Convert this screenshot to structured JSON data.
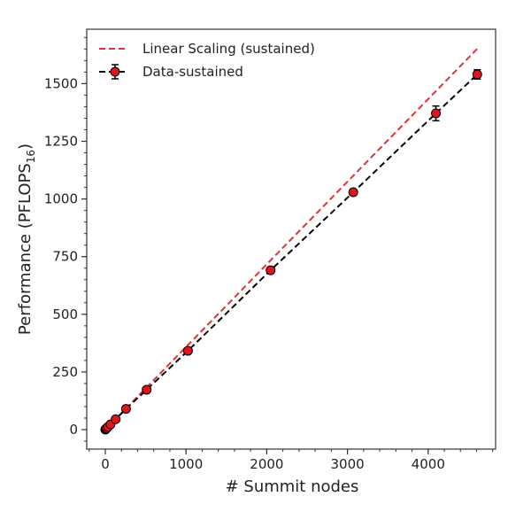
{
  "chart_data": {
    "type": "line",
    "title": "",
    "xlabel": "# Summit nodes",
    "ylabel": "Performance (PFLOPS",
    "ylabel_subscript": "16",
    "ylabel_close": ")",
    "xlim": [
      -250,
      4850
    ],
    "ylim": [
      -85,
      1730
    ],
    "xticks": [
      0,
      1000,
      2000,
      3000,
      4000
    ],
    "xtick_labels": [
      "0",
      "1000",
      "2000",
      "3000",
      "4000"
    ],
    "xminor_step": 200,
    "yticks": [
      0,
      250,
      500,
      750,
      1000,
      1250,
      1500
    ],
    "ytick_labels": [
      "0",
      "250",
      "500",
      "750",
      "1000",
      "1250",
      "1500"
    ],
    "yminor_step": 50,
    "grid": false,
    "legend_position": "upper left",
    "series": [
      {
        "name": "Linear Scaling (sustained)",
        "style": "dashed",
        "color": "#e0303a",
        "x": [
          0,
          4608
        ],
        "values": [
          0,
          1651
        ]
      },
      {
        "name": "Data-sustained",
        "style": "dashed-markers-errorbars",
        "color": "#000000",
        "marker_color": "#e0141e",
        "x": [
          1,
          2,
          4,
          8,
          16,
          32,
          64,
          128,
          256,
          512,
          1024,
          2048,
          3072,
          4096,
          4608
        ],
        "values": [
          0.3,
          0.7,
          1.4,
          2.8,
          5.6,
          11.3,
          22.5,
          45,
          90,
          173,
          342,
          691,
          1029,
          1371,
          1540
        ],
        "errors": [
          0,
          0,
          0,
          0,
          0,
          0,
          0,
          1,
          2,
          3,
          5,
          8,
          12,
          32,
          20
        ]
      }
    ]
  },
  "legend": {
    "items": [
      {
        "label": "Linear Scaling (sustained)"
      },
      {
        "label": "Data-sustained"
      }
    ]
  }
}
